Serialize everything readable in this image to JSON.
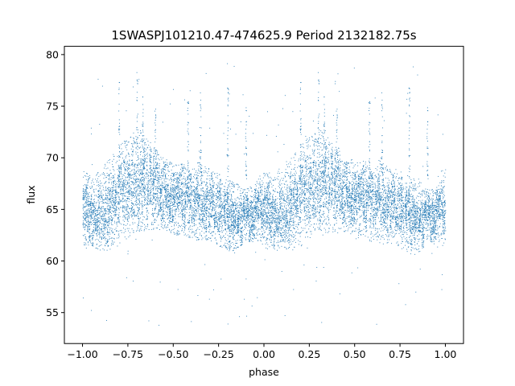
{
  "chart_data": {
    "type": "scatter",
    "title": "1SWASPJ101210.47-474625.9 Period 2132182.75s",
    "xlabel": "phase",
    "ylabel": "flux",
    "xlim": [
      -1.1,
      1.1
    ],
    "ylim": [
      52,
      80.8
    ],
    "grid": false,
    "legend": "none",
    "x_ticks": [
      -1.0,
      -0.75,
      -0.5,
      -0.25,
      0.0,
      0.25,
      0.5,
      0.75,
      1.0
    ],
    "x_tick_labels": [
      "−1.00",
      "−0.75",
      "−0.50",
      "−0.25",
      "0.00",
      "0.25",
      "0.50",
      "0.75",
      "1.00"
    ],
    "y_ticks": [
      55,
      60,
      65,
      70,
      75,
      80
    ],
    "y_tick_labels": [
      "55",
      "60",
      "65",
      "70",
      "75",
      "80"
    ],
    "marker_color": "#1f77b4",
    "series": [
      {
        "x_range": [
          -1.0,
          1.0
        ],
        "periodic_repeat": 1.0,
        "baseline_flux": 65.5,
        "profile_phase": [
          0.0,
          0.05,
          0.1,
          0.15,
          0.2,
          0.25,
          0.3,
          0.35,
          0.4,
          0.45,
          0.5,
          0.55,
          0.6,
          0.65,
          0.7,
          0.75,
          0.8,
          0.85,
          0.9,
          0.95,
          1.0
        ],
        "profile_upper": [
          69.0,
          68.0,
          69.0,
          70.0,
          71.0,
          72.5,
          73.0,
          72.0,
          71.0,
          70.0,
          69.5,
          69.5,
          70.0,
          69.5,
          69.0,
          68.5,
          68.0,
          67.5,
          67.0,
          67.5,
          69.0
        ],
        "profile_lower": [
          61.5,
          61.5,
          61.0,
          61.0,
          61.5,
          62.0,
          62.5,
          63.0,
          63.0,
          63.0,
          62.5,
          62.5,
          62.0,
          62.0,
          62.0,
          61.5,
          61.0,
          61.0,
          62.0,
          62.0,
          61.5
        ],
        "spike_phases": [
          0.2,
          0.3,
          0.33,
          0.4,
          0.58,
          0.65,
          0.8,
          0.9
        ],
        "spike_max": [
          77.5,
          78.5,
          76.0,
          75.0,
          75.5,
          76.5,
          77.0,
          75.0
        ],
        "outlier_range": [
          53.5,
          79.5
        ]
      }
    ]
  }
}
